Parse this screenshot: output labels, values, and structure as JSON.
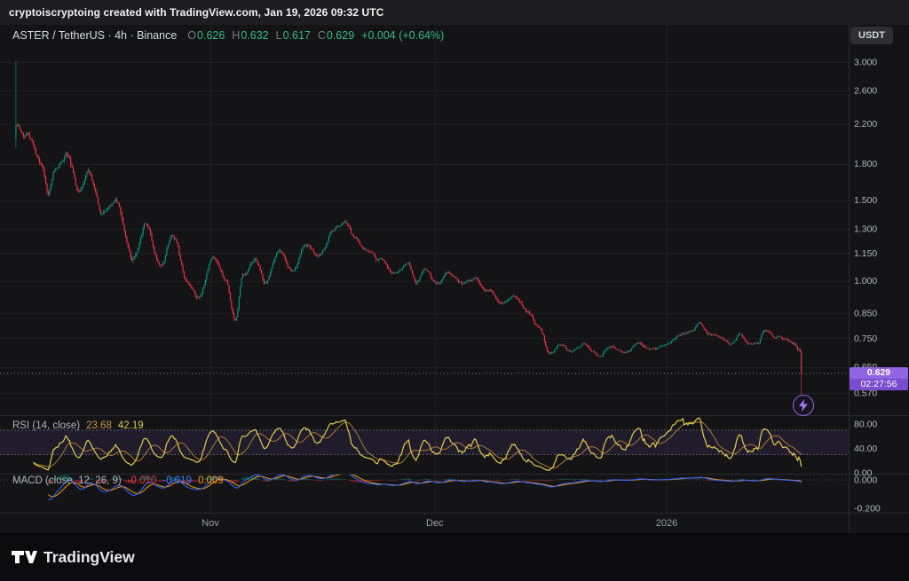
{
  "topbar": {
    "text": "cryptoiscryptoing created with TradingView.com, Jan 19, 2026 09:32 UTC"
  },
  "header": {
    "instrument": "ASTER / TetherUS · 4h · Binance",
    "ohlc": {
      "o_label": "O",
      "o_value": "0.626",
      "h_label": "H",
      "h_value": "0.632",
      "l_label": "L",
      "l_value": "0.617",
      "c_label": "C",
      "c_value": "0.629",
      "change": "+0.004 (+0.64%)"
    },
    "currency_button": "USDT"
  },
  "price_scale": {
    "ticks": [
      "3.000",
      "2.600",
      "2.200",
      "1.800",
      "1.500",
      "1.300",
      "1.150",
      "1.000",
      "0.850",
      "0.750",
      "0.650",
      "0.570"
    ]
  },
  "last_price": {
    "value": "0.629",
    "countdown": "02:27:56"
  },
  "rsi_panel": {
    "label": "RSI (14, close)",
    "value": "23.68",
    "ma_value": "42.19",
    "ticks": [
      "80.00",
      "40.00",
      "0.00"
    ]
  },
  "macd_panel": {
    "label": "MACD (close, 12, 26, 9)",
    "hist_value": "-0.010",
    "macd_value": "-0.019",
    "signal_value": "0.009",
    "ticks": [
      "0.000",
      "-0.200"
    ]
  },
  "footer": {
    "brand": "TradingView"
  },
  "colors": {
    "up": "#089981",
    "down": "#F23645",
    "rsi_line": "#E2CC4B",
    "rsi_ma": "#C9923E",
    "macd_line": "#2962FF",
    "signal_line": "#FF9800",
    "accent_purple": "#9164E3",
    "axis_text": "#B2B5BE"
  },
  "chart_data": {
    "type": "candlestick",
    "symbol": "ASTER/USDT",
    "exchange": "Binance",
    "interval": "4h",
    "scale": "log",
    "current_ohlc": {
      "open": 0.626,
      "high": 0.632,
      "low": 0.617,
      "close": 0.629,
      "change": 0.004,
      "change_pct": 0.64
    },
    "last_price": 0.629,
    "days_span": 105,
    "candles_per_day": 6,
    "time_ticks": [
      {
        "label": "Nov",
        "day": 26
      },
      {
        "label": "Dec",
        "day": 56
      },
      {
        "label": "2026",
        "day": 87
      }
    ],
    "price_path": [
      [
        0,
        2.18
      ],
      [
        1,
        2.1
      ],
      [
        2,
        2.02
      ],
      [
        3.2,
        1.82
      ],
      [
        4.4,
        1.54
      ],
      [
        5.2,
        1.72
      ],
      [
        6.8,
        1.88
      ],
      [
        8.5,
        1.55
      ],
      [
        9.7,
        1.72
      ],
      [
        11.5,
        1.42
      ],
      [
        13.3,
        1.52
      ],
      [
        15.6,
        1.12
      ],
      [
        17.4,
        1.33
      ],
      [
        19.2,
        1.08
      ],
      [
        21,
        1.28
      ],
      [
        22.7,
        1.03
      ],
      [
        24.5,
        0.92
      ],
      [
        26.3,
        1.13
      ],
      [
        28,
        1.0
      ],
      [
        29.3,
        0.82
      ],
      [
        30.4,
        1.04
      ],
      [
        32.2,
        1.1
      ],
      [
        33.4,
        0.98
      ],
      [
        35.2,
        1.14
      ],
      [
        37,
        1.04
      ],
      [
        38.7,
        1.2
      ],
      [
        40.5,
        1.12
      ],
      [
        42.3,
        1.28
      ],
      [
        43.8,
        1.36
      ],
      [
        45.3,
        1.22
      ],
      [
        47,
        1.17
      ],
      [
        48.8,
        1.11
      ],
      [
        50.6,
        1.04
      ],
      [
        52.4,
        1.09
      ],
      [
        53.5,
        1.0
      ],
      [
        54.7,
        1.07
      ],
      [
        56.5,
        0.97
      ],
      [
        57.7,
        1.04
      ],
      [
        59.5,
        0.99
      ],
      [
        61.2,
        1.02
      ],
      [
        63,
        0.95
      ],
      [
        64.8,
        0.9
      ],
      [
        66.6,
        0.92
      ],
      [
        68.4,
        0.86
      ],
      [
        70.1,
        0.78
      ],
      [
        71.3,
        0.695
      ],
      [
        72.7,
        0.73
      ],
      [
        74.3,
        0.7
      ],
      [
        76,
        0.72
      ],
      [
        77.8,
        0.685
      ],
      [
        79.6,
        0.72
      ],
      [
        81.4,
        0.7
      ],
      [
        83.2,
        0.73
      ],
      [
        84.9,
        0.71
      ],
      [
        86.7,
        0.725
      ],
      [
        88.5,
        0.76
      ],
      [
        90.3,
        0.78
      ],
      [
        91.5,
        0.805
      ],
      [
        92.6,
        0.77
      ],
      [
        94.4,
        0.75
      ],
      [
        95.6,
        0.73
      ],
      [
        96.8,
        0.76
      ],
      [
        98,
        0.72
      ],
      [
        99.2,
        0.74
      ],
      [
        100,
        0.785
      ],
      [
        101.5,
        0.76
      ],
      [
        102.7,
        0.745
      ],
      [
        103.9,
        0.73
      ],
      [
        104.6,
        0.71
      ],
      [
        105,
        0.7
      ]
    ],
    "first_candle": {
      "open": 2.05,
      "close": 2.18,
      "high": 3.02,
      "low": 1.95
    },
    "last_candle": {
      "open": 0.7,
      "close": 0.629,
      "high": 0.705,
      "low": 0.565
    },
    "indicators": {
      "rsi": {
        "period": 14,
        "source": "close",
        "current": 23.68,
        "ma": 42.19,
        "upper_band": 70,
        "lower_band": 30
      },
      "macd": {
        "fast": 12,
        "slow": 26,
        "signal": 9,
        "histogram": -0.01,
        "macd": -0.019,
        "signal_value": 0.009
      }
    }
  }
}
